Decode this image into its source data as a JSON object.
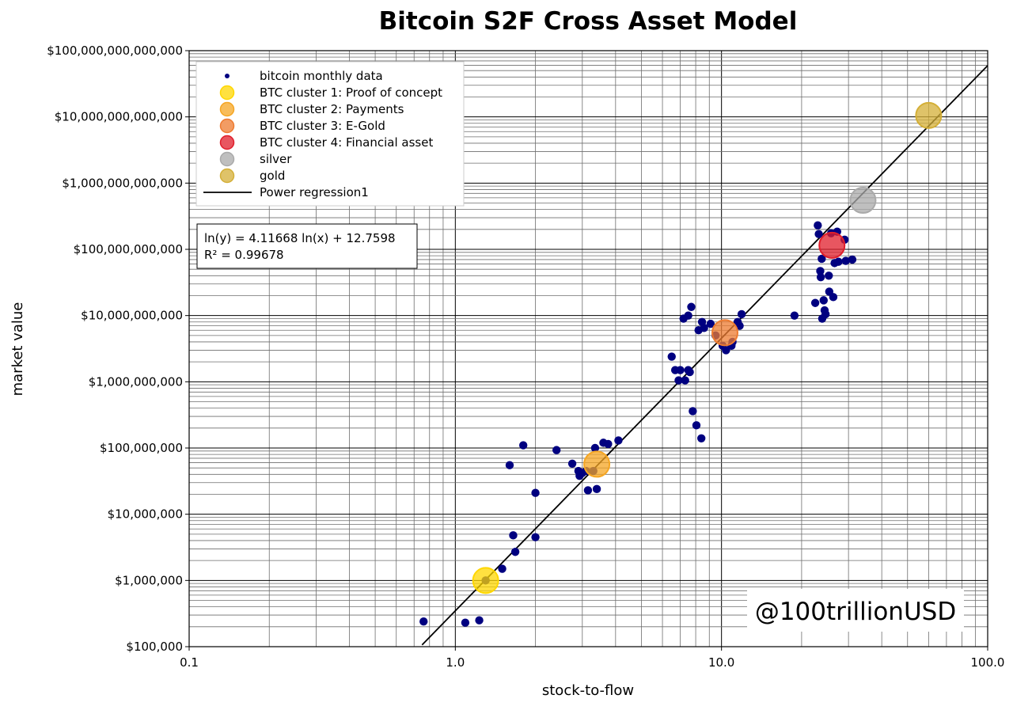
{
  "chart_data": {
    "type": "scatter",
    "title": "Bitcoin S2F Cross Asset Model",
    "xlabel": "stock-to-flow",
    "ylabel": "market value",
    "x_scale": "log",
    "y_scale": "log",
    "xlim": [
      0.1,
      100.0
    ],
    "ylim": [
      100000,
      100000000000000
    ],
    "x_tick_labels": [
      "0.1",
      "1.0",
      "10.0",
      "100.0"
    ],
    "y_tick_labels": [
      "$100,000",
      "$1,000,000",
      "$10,000,000",
      "$100,000,000",
      "$1,000,000,000",
      "$10,000,000,000",
      "$100,000,000,000",
      "$1,000,000,000,000",
      "$10,000,000,000,000",
      "$100,000,000,000,000"
    ],
    "grid": true,
    "legend_position": "upper-left",
    "watermark": "@100trillionUSD",
    "annotation": {
      "equation": "ln(y) = 4.11668 ln(x) + 12.7598",
      "r_squared": "R² = 0.99678"
    },
    "regression": {
      "name": "Power regression1",
      "exponent": 4.11668,
      "ln_intercept": 12.7598,
      "color": "#000000",
      "x_range": [
        0.75,
        100
      ]
    },
    "series": [
      {
        "name": "bitcoin monthly data",
        "color": "#000080",
        "marker": "small-circle",
        "points": [
          [
            0.76,
            240000
          ],
          [
            1.09,
            230000
          ],
          [
            1.23,
            250000
          ],
          [
            1.3,
            1000000
          ],
          [
            1.5,
            1500000
          ],
          [
            1.65,
            4800000
          ],
          [
            1.68,
            2700000
          ],
          [
            2.0,
            4500000
          ],
          [
            1.6,
            55000000
          ],
          [
            1.8,
            110000000
          ],
          [
            2.0,
            21000000
          ],
          [
            2.4,
            93000000
          ],
          [
            2.75,
            58000000
          ],
          [
            2.9,
            45000000
          ],
          [
            2.93,
            38000000
          ],
          [
            3.0,
            42000000
          ],
          [
            3.1,
            45000000
          ],
          [
            3.15,
            23000000
          ],
          [
            3.3,
            45000000
          ],
          [
            3.35,
            100000000
          ],
          [
            3.4,
            24000000
          ],
          [
            3.6,
            120000000
          ],
          [
            3.75,
            115000000
          ],
          [
            4.1,
            130000000
          ],
          [
            6.5,
            2400000000
          ],
          [
            6.7,
            1500000000
          ],
          [
            6.9,
            1050000000
          ],
          [
            7.0,
            1500000000
          ],
          [
            7.3,
            1050000000
          ],
          [
            7.5,
            1500000000
          ],
          [
            7.6,
            1400000000
          ],
          [
            7.2,
            9000000000
          ],
          [
            7.5,
            10000000000
          ],
          [
            7.7,
            13500000000
          ],
          [
            7.8,
            360000000
          ],
          [
            8.05,
            220000000
          ],
          [
            8.4,
            140000000
          ],
          [
            8.2,
            6000000000
          ],
          [
            8.45,
            8000000000
          ],
          [
            8.6,
            6500000000
          ],
          [
            9.1,
            7500000000
          ],
          [
            9.5,
            5000000000
          ],
          [
            10.1,
            3500000000
          ],
          [
            10.4,
            3000000000
          ],
          [
            10.9,
            3500000000
          ],
          [
            11.0,
            4000000000
          ],
          [
            11.5,
            8000000000
          ],
          [
            11.7,
            7000000000
          ],
          [
            11.9,
            10500000000
          ],
          [
            18.8,
            10000000000
          ],
          [
            22.5,
            15500000000
          ],
          [
            23.0,
            230000000000
          ],
          [
            23.2,
            170000000000
          ],
          [
            23.5,
            47000000000
          ],
          [
            23.6,
            38000000000
          ],
          [
            23.8,
            72000000000
          ],
          [
            23.9,
            9000000000
          ],
          [
            24.2,
            17000000000
          ],
          [
            24.4,
            12000000000
          ],
          [
            24.6,
            10500000000
          ],
          [
            25.3,
            40000000000
          ],
          [
            25.4,
            23000000000
          ],
          [
            25.8,
            175000000000
          ],
          [
            26.3,
            19000000000
          ],
          [
            26.6,
            62000000000
          ],
          [
            27.2,
            185000000000
          ],
          [
            27.5,
            65000000000
          ],
          [
            29.0,
            140000000000
          ],
          [
            29.3,
            67000000000
          ],
          [
            31.0,
            70000000000
          ]
        ]
      },
      {
        "name": "BTC cluster 1: Proof of concept",
        "color": "#FFD700",
        "marker": "large-circle",
        "points": [
          [
            1.3,
            1000000
          ]
        ]
      },
      {
        "name": "BTC cluster 2: Payments",
        "color": "#F5A623",
        "marker": "large-circle",
        "points": [
          [
            3.4,
            57000000
          ]
        ]
      },
      {
        "name": "BTC cluster 3: E-Gold",
        "color": "#EE7B30",
        "marker": "large-circle",
        "points": [
          [
            10.3,
            5500000000
          ]
        ]
      },
      {
        "name": "BTC cluster 4: Financial asset",
        "color": "#E01E2B",
        "marker": "large-circle",
        "points": [
          [
            26.0,
            115000000000
          ]
        ]
      },
      {
        "name": "silver",
        "color": "#AAAAAA",
        "marker": "large-circle",
        "points": [
          [
            34.0,
            550000000000
          ]
        ]
      },
      {
        "name": "gold",
        "color": "#D4AF37",
        "marker": "large-circle",
        "points": [
          [
            60.0,
            10500000000000
          ]
        ]
      }
    ]
  }
}
